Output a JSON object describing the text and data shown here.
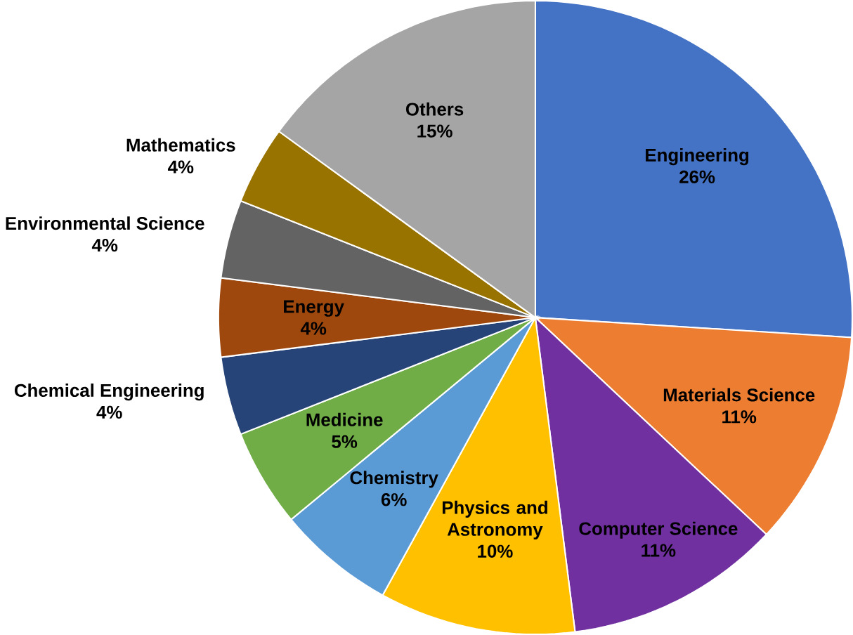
{
  "chart_data": {
    "type": "pie",
    "categories": [
      "Engineering",
      "Materials Science",
      "Computer Science",
      "Physics and Astronomy",
      "Chemistry",
      "Medicine",
      "Chemical Engineering",
      "Energy",
      "Environmental Science",
      "Mathematics",
      "Others"
    ],
    "values": [
      26,
      11,
      11,
      10,
      6,
      5,
      4,
      4,
      4,
      4,
      15
    ],
    "value_labels": [
      "26%",
      "11%",
      "11%",
      "10%",
      "6%",
      "5%",
      "4%",
      "4%",
      "4%",
      "4%",
      "15%"
    ],
    "colors": [
      "#4472c4",
      "#ed7d31",
      "#7030a0",
      "#ffc000",
      "#5b9bd5",
      "#70ad47",
      "#264478",
      "#9e480e",
      "#636363",
      "#997300",
      "#a5a5a5"
    ]
  }
}
